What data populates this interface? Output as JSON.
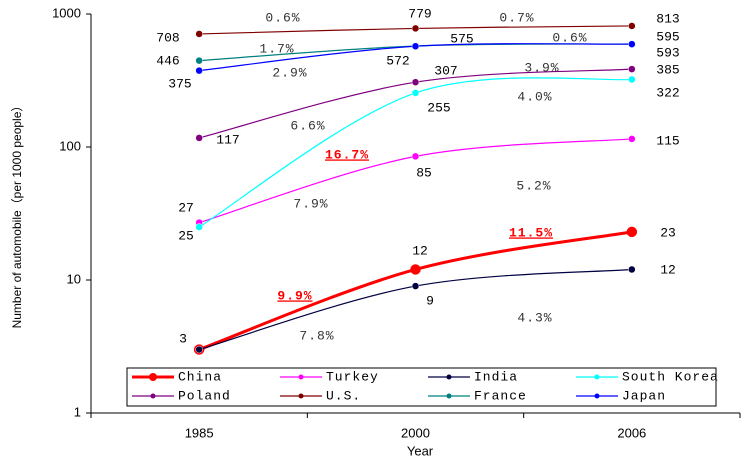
{
  "chart_data": {
    "type": "line",
    "x_label": "Year",
    "y_label": "Number of automobile（per 1000 people）",
    "categories": [
      "1985",
      "2000",
      "2006"
    ],
    "log_scale": true,
    "ylim": [
      1,
      1000
    ],
    "yticks": [
      1,
      10,
      100,
      1000
    ],
    "legend": "bottom",
    "series": [
      {
        "name": "China",
        "color": "#ff0000",
        "values": [
          3,
          12,
          23
        ]
      },
      {
        "name": "Turkey",
        "color": "#ff00ff",
        "values": [
          27,
          85,
          115
        ]
      },
      {
        "name": "India",
        "color": "#000040",
        "values": [
          3,
          9,
          12
        ]
      },
      {
        "name": "South Korea",
        "color": "#00ffff",
        "values": [
          25,
          255,
          322
        ]
      },
      {
        "name": "Poland",
        "color": "#800080",
        "values": [
          117,
          307,
          385
        ]
      },
      {
        "name": "U.S.",
        "color": "#800000",
        "values": [
          708,
          779,
          813
        ]
      },
      {
        "name": "France",
        "color": "#008080",
        "values": [
          446,
          575,
          595
        ]
      },
      {
        "name": "Japan",
        "color": "#0000ff",
        "values": [
          375,
          572,
          593
        ]
      }
    ],
    "annotations": [
      {
        "text": "0.6%",
        "color": "#333333"
      },
      {
        "text": "0.7%",
        "color": "#333333"
      },
      {
        "text": "1.7%",
        "color": "#333333"
      },
      {
        "text": "0.6%",
        "color": "#333333"
      },
      {
        "text": "2.9%",
        "color": "#333333"
      },
      {
        "text": "3.9%",
        "color": "#333333"
      },
      {
        "text": "6.6%",
        "color": "#333333"
      },
      {
        "text": "4.0%",
        "color": "#333333"
      },
      {
        "text": "16.7%",
        "color": "#ff0000"
      },
      {
        "text": "7.9%",
        "color": "#333333"
      },
      {
        "text": "5.2%",
        "color": "#333333"
      },
      {
        "text": "11.5%",
        "color": "#ff0000"
      },
      {
        "text": "9.9%",
        "color": "#ff0000"
      },
      {
        "text": "7.8%",
        "color": "#333333"
      },
      {
        "text": "4.3%",
        "color": "#333333"
      }
    ]
  }
}
